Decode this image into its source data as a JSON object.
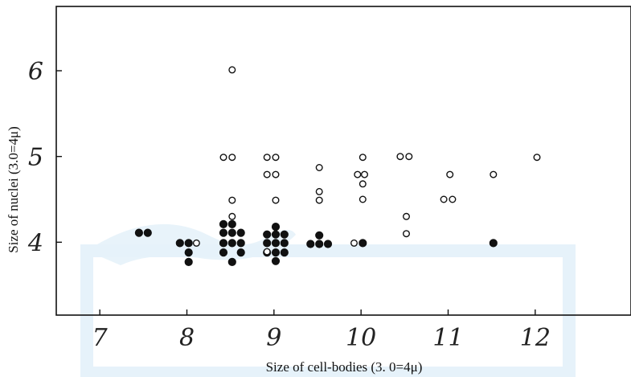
{
  "chart_data": {
    "type": "scatter",
    "xlabel": "Size of cell-bodies (3. 0=4μ)",
    "ylabel": "Size of nuclei (3.0=4μ)",
    "xlim": [
      6.5,
      13.1
    ],
    "ylim": [
      3.15,
      6.75
    ],
    "xticks": [
      "7",
      "8",
      "9",
      "10",
      "11",
      "12"
    ],
    "yticks": [
      "4",
      "5",
      "6"
    ],
    "grid": false,
    "legend": "none",
    "series": [
      {
        "marker": "filled",
        "color": "#111111",
        "points": [
          [
            7.45,
            4.11
          ],
          [
            7.55,
            4.11
          ],
          [
            7.92,
            3.99
          ],
          [
            8.02,
            3.99
          ],
          [
            8.02,
            3.88
          ],
          [
            8.02,
            3.77
          ],
          [
            8.42,
            4.21
          ],
          [
            8.52,
            4.21
          ],
          [
            8.42,
            4.11
          ],
          [
            8.52,
            4.11
          ],
          [
            8.62,
            4.11
          ],
          [
            8.42,
            3.99
          ],
          [
            8.52,
            3.99
          ],
          [
            8.62,
            3.99
          ],
          [
            8.42,
            3.88
          ],
          [
            8.62,
            3.88
          ],
          [
            8.52,
            3.77
          ],
          [
            9.02,
            4.18
          ],
          [
            8.92,
            4.09
          ],
          [
            9.02,
            4.09
          ],
          [
            9.12,
            4.09
          ],
          [
            8.92,
            3.99
          ],
          [
            9.02,
            3.99
          ],
          [
            9.12,
            3.99
          ],
          [
            8.92,
            3.88
          ],
          [
            9.02,
            3.88
          ],
          [
            9.12,
            3.88
          ],
          [
            9.02,
            3.78
          ],
          [
            9.52,
            4.08
          ],
          [
            9.42,
            3.98
          ],
          [
            9.52,
            3.98
          ],
          [
            9.62,
            3.98
          ],
          [
            10.02,
            3.99
          ],
          [
            11.52,
            3.99
          ]
        ]
      },
      {
        "marker": "open",
        "color": "#111111",
        "points": [
          [
            8.11,
            3.99
          ],
          [
            8.42,
            4.99
          ],
          [
            8.52,
            4.99
          ],
          [
            8.52,
            6.01
          ],
          [
            8.52,
            4.49
          ],
          [
            8.52,
            4.3
          ],
          [
            8.92,
            4.99
          ],
          [
            9.02,
            4.99
          ],
          [
            8.92,
            4.79
          ],
          [
            9.02,
            4.79
          ],
          [
            9.02,
            4.49
          ],
          [
            8.92,
            3.89
          ],
          [
            9.52,
            4.87
          ],
          [
            9.52,
            4.59
          ],
          [
            9.52,
            4.49
          ],
          [
            10.02,
            4.99
          ],
          [
            9.96,
            4.79
          ],
          [
            10.04,
            4.79
          ],
          [
            10.02,
            4.68
          ],
          [
            10.02,
            4.5
          ],
          [
            9.92,
            3.99
          ],
          [
            10.45,
            5.0
          ],
          [
            10.55,
            5.0
          ],
          [
            10.52,
            4.3
          ],
          [
            10.52,
            4.1
          ],
          [
            10.95,
            4.5
          ],
          [
            11.05,
            4.5
          ],
          [
            11.02,
            4.79
          ],
          [
            11.52,
            4.79
          ],
          [
            12.02,
            4.99
          ]
        ]
      }
    ]
  }
}
